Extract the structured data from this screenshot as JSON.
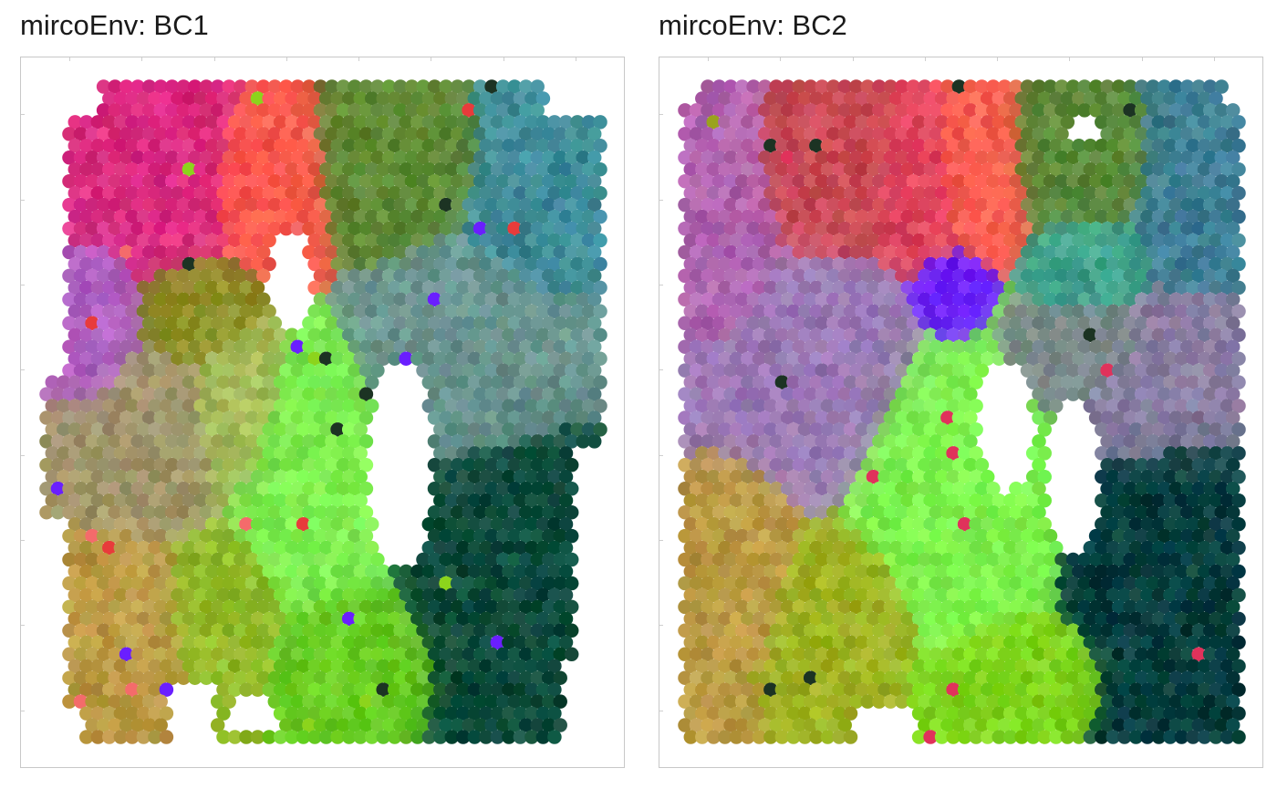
{
  "chart_data": [
    {
      "type": "scatter",
      "subtype": "spatial spot map (hexagonal grid)",
      "title": "mircoEnv: BC1",
      "xlabel": "",
      "ylabel": "",
      "grid": false,
      "legend": "none",
      "spot_grid": {
        "cols": 49,
        "rows": 56
      },
      "hole_regions": [
        {
          "center": [
            0.64,
            0.58
          ],
          "radius": [
            0.06,
            0.16
          ]
        },
        {
          "center": [
            0.37,
            0.97
          ],
          "radius": [
            0.05,
            0.03
          ]
        },
        {
          "center": [
            0.44,
            0.3
          ],
          "radius": [
            0.04,
            0.08
          ]
        }
      ],
      "color_regions": [
        {
          "center": [
            0.18,
            0.14
          ],
          "radius": [
            0.15,
            0.13
          ],
          "color": "#db2b80"
        },
        {
          "center": [
            0.4,
            0.15
          ],
          "radius": [
            0.09,
            0.1
          ],
          "color": "#ff5c4d"
        },
        {
          "center": [
            0.63,
            0.13
          ],
          "radius": [
            0.12,
            0.09
          ],
          "color": "#5f8a34"
        },
        {
          "center": [
            0.88,
            0.18
          ],
          "radius": [
            0.1,
            0.12
          ],
          "color": "#3f8c9a"
        },
        {
          "center": [
            0.09,
            0.36
          ],
          "radius": [
            0.07,
            0.12
          ],
          "color": "#b062c4"
        },
        {
          "center": [
            0.27,
            0.35
          ],
          "radius": [
            0.09,
            0.07
          ],
          "color": "#8c8f26"
        },
        {
          "center": [
            0.78,
            0.41
          ],
          "radius": [
            0.14,
            0.14
          ],
          "color": "#6b9490"
        },
        {
          "center": [
            0.18,
            0.55
          ],
          "radius": [
            0.12,
            0.13
          ],
          "color": "#a0956a"
        },
        {
          "center": [
            0.34,
            0.5
          ],
          "radius": [
            0.07,
            0.12
          ],
          "color": "#a8bc5c"
        },
        {
          "center": [
            0.47,
            0.62
          ],
          "radius": [
            0.12,
            0.15
          ],
          "color": "#7ded4f"
        },
        {
          "center": [
            0.13,
            0.82
          ],
          "radius": [
            0.11,
            0.12
          ],
          "color": "#bb9a45"
        },
        {
          "center": [
            0.32,
            0.8
          ],
          "radius": [
            0.09,
            0.1
          ],
          "color": "#93ba2a"
        },
        {
          "center": [
            0.55,
            0.88
          ],
          "radius": [
            0.11,
            0.08
          ],
          "color": "#68cc22"
        },
        {
          "center": [
            0.84,
            0.74
          ],
          "radius": [
            0.14,
            0.18
          ],
          "color": "#0c4a3a"
        }
      ],
      "accent_colors": [
        "#6a1fff",
        "#e83b3b",
        "#1c3323",
        "#8cd41c",
        "#f46b6b"
      ]
    },
    {
      "type": "scatter",
      "subtype": "spatial spot map (hexagonal grid)",
      "title": "mircoEnv: BC2",
      "xlabel": "",
      "ylabel": "",
      "grid": false,
      "legend": "none",
      "spot_grid": {
        "cols": 49,
        "rows": 56
      },
      "hole_regions": [
        {
          "center": [
            0.58,
            0.52
          ],
          "radius": [
            0.05,
            0.1
          ]
        },
        {
          "center": [
            0.7,
            0.6
          ],
          "radius": [
            0.05,
            0.12
          ]
        },
        {
          "center": [
            0.72,
            0.06
          ],
          "radius": [
            0.03,
            0.02
          ]
        }
      ],
      "color_regions": [
        {
          "center": [
            0.08,
            0.2
          ],
          "radius": [
            0.07,
            0.17
          ],
          "color": "#b065b0"
        },
        {
          "center": [
            0.25,
            0.12
          ],
          "radius": [
            0.11,
            0.1
          ],
          "color": "#c94a55"
        },
        {
          "center": [
            0.43,
            0.15
          ],
          "radius": [
            0.07,
            0.1
          ],
          "color": "#e0435f"
        },
        {
          "center": [
            0.52,
            0.13
          ],
          "radius": [
            0.08,
            0.09
          ],
          "color": "#ff6050"
        },
        {
          "center": [
            0.72,
            0.11
          ],
          "radius": [
            0.11,
            0.08
          ],
          "color": "#5c8a3a"
        },
        {
          "center": [
            0.91,
            0.14
          ],
          "radius": [
            0.08,
            0.11
          ],
          "color": "#3e7f95"
        },
        {
          "center": [
            0.73,
            0.28
          ],
          "radius": [
            0.07,
            0.06
          ],
          "color": "#3fa38c"
        },
        {
          "center": [
            0.48,
            0.32
          ],
          "radius": [
            0.05,
            0.05
          ],
          "color": "#6a1fff"
        },
        {
          "center": [
            0.22,
            0.44
          ],
          "radius": [
            0.15,
            0.13
          ],
          "color": "#9a79b5"
        },
        {
          "center": [
            0.72,
            0.41
          ],
          "radius": [
            0.1,
            0.06
          ],
          "color": "#7d8c8c"
        },
        {
          "center": [
            0.87,
            0.47
          ],
          "radius": [
            0.12,
            0.1
          ],
          "color": "#8b7fa3"
        },
        {
          "center": [
            0.47,
            0.62
          ],
          "radius": [
            0.12,
            0.17
          ],
          "color": "#7ff54f"
        },
        {
          "center": [
            0.09,
            0.73
          ],
          "radius": [
            0.08,
            0.12
          ],
          "color": "#bb9a45"
        },
        {
          "center": [
            0.28,
            0.82
          ],
          "radius": [
            0.1,
            0.1
          ],
          "color": "#a0b323"
        },
        {
          "center": [
            0.58,
            0.91
          ],
          "radius": [
            0.11,
            0.06
          ],
          "color": "#7fd41c"
        },
        {
          "center": [
            0.88,
            0.73
          ],
          "radius": [
            0.11,
            0.18
          ],
          "color": "#043d3d"
        }
      ],
      "accent_colors": [
        "#e0325b",
        "#9aa31d",
        "#e0325b",
        "#1c3323"
      ]
    }
  ]
}
